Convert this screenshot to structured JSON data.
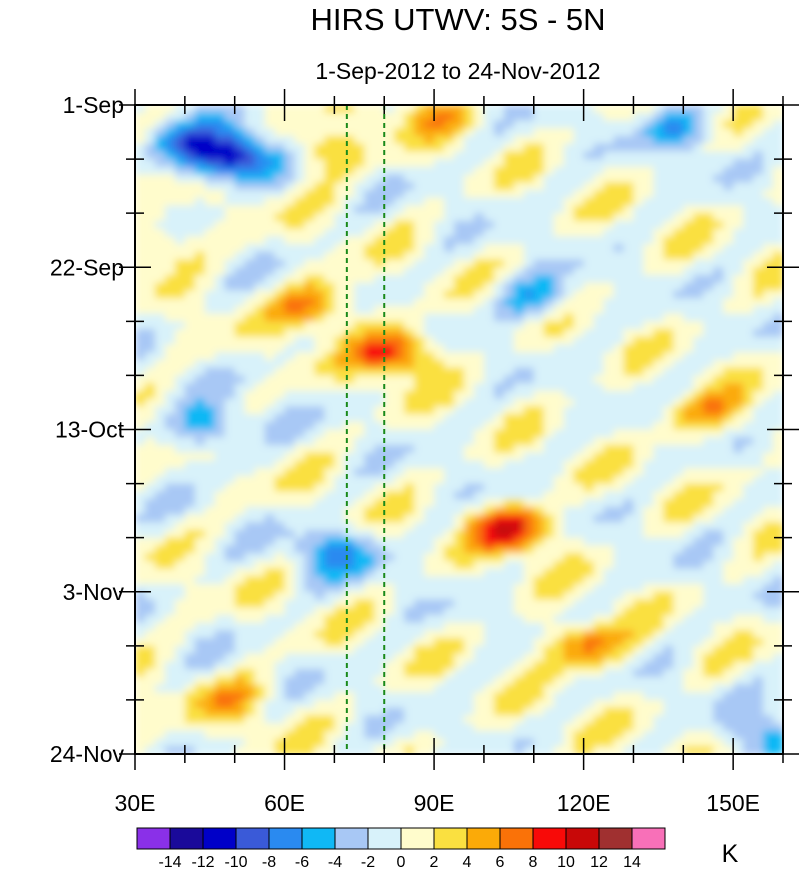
{
  "chart_data": {
    "type": "heatmap",
    "title": "HIRS UTWV: 5S - 5N",
    "subtitle": "1-Sep-2012 to 24-Nov-2012",
    "x_axis": {
      "range": [
        30,
        160
      ],
      "ticks": [
        30,
        60,
        90,
        120,
        150
      ],
      "tick_labels": [
        "30E",
        "60E",
        "90E",
        "120E",
        "150E"
      ],
      "minor_step": 10
    },
    "y_axis": {
      "range_days": [
        0,
        84
      ],
      "ticks_days": [
        0,
        21,
        42,
        63,
        84
      ],
      "tick_labels": [
        "1-Sep",
        "22-Sep",
        "13-Oct",
        "3-Nov",
        "24-Nov"
      ],
      "minor_step_days": 7
    },
    "reference_lines": [
      {
        "x": 72.5,
        "style": "dashed",
        "color": "#1a8a1a"
      },
      {
        "x": 80,
        "style": "dashed",
        "color": "#1a8a1a"
      }
    ],
    "colorbar": {
      "unit": "K",
      "levels": [
        -14,
        -12,
        -10,
        -8,
        -6,
        -4,
        -2,
        0,
        2,
        4,
        6,
        8,
        10,
        12,
        14
      ],
      "level_labels": [
        "-14",
        "-12",
        "-10",
        "-8",
        "-6",
        "-4",
        "-2",
        "0",
        "2",
        "4",
        "6",
        "8",
        "10",
        "12",
        "14"
      ],
      "colors": [
        "#8a30e8",
        "#1a0a9a",
        "#0000c8",
        "#3a5ad8",
        "#2a8af0",
        "#10b8f5",
        "#a8c8f5",
        "#d8f2fa",
        "#fffccc",
        "#fae040",
        "#fbaa08",
        "#fa7208",
        "#f80a08",
        "#c80808",
        "#a03030",
        "#f870b8"
      ]
    },
    "anomalies_K": [
      {
        "lon": 40,
        "day": 5,
        "value": -7
      },
      {
        "lon": 50,
        "day": 7,
        "value": -12
      },
      {
        "lon": 68,
        "day": 6,
        "value": 5
      },
      {
        "lon": 90,
        "day": 1,
        "value": 4
      },
      {
        "lon": 140,
        "day": 3,
        "value": -5
      },
      {
        "lon": 35,
        "day": 18,
        "value": 4
      },
      {
        "lon": 66,
        "day": 26,
        "value": 7
      },
      {
        "lon": 82,
        "day": 32,
        "value": 9
      },
      {
        "lon": 110,
        "day": 25,
        "value": -5
      },
      {
        "lon": 145,
        "day": 40,
        "value": 5
      },
      {
        "lon": 45,
        "day": 42,
        "value": -6
      },
      {
        "lon": 106,
        "day": 55,
        "value": 10
      },
      {
        "lon": 70,
        "day": 58,
        "value": -6
      },
      {
        "lon": 120,
        "day": 70,
        "value": 7
      },
      {
        "lon": 50,
        "day": 77,
        "value": 4
      },
      {
        "lon": 158,
        "day": 82,
        "value": -5
      }
    ]
  }
}
